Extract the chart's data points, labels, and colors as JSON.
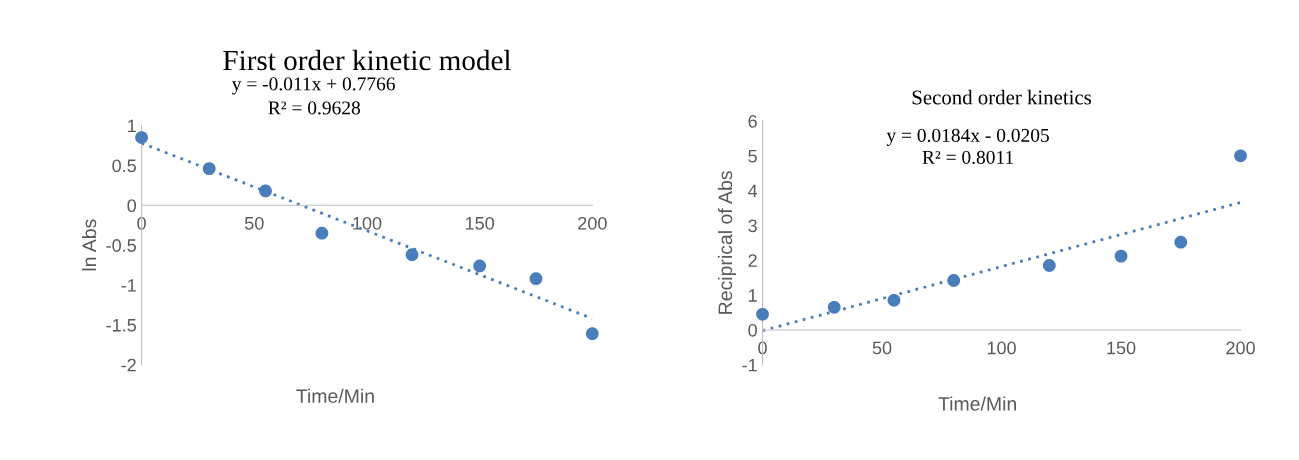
{
  "chart_data": [
    {
      "type": "scatter",
      "title": "First order kinetic model",
      "xlabel": "Time/Min",
      "ylabel": "ln Abs",
      "annotations": [
        "y = -0.011x + 0.7766",
        "R² = 0.9628"
      ],
      "xlim": [
        0,
        200
      ],
      "ylim": [
        -2,
        1
      ],
      "xticks": [
        0,
        50,
        100,
        150,
        200
      ],
      "yticks": [
        -2,
        -1.5,
        -1,
        -0.5,
        0,
        0.5,
        1
      ],
      "grid": false,
      "legend": false,
      "series": [
        {
          "color": "#4a7ebb",
          "marker": "circle",
          "x": [
            0,
            30,
            55,
            80,
            120,
            150,
            175,
            200
          ],
          "values": [
            0.85,
            0.46,
            0.18,
            -0.35,
            -0.62,
            -0.76,
            -0.92,
            -1.61
          ]
        },
        {
          "type": "line",
          "color": "#4a7ebb",
          "marker": "none",
          "line_style": "dotted",
          "x": [
            0,
            200
          ],
          "values": [
            0.78,
            -1.42
          ]
        }
      ]
    },
    {
      "type": "scatter",
      "title": "Second order kinetics",
      "xlabel": "Time/Min",
      "ylabel": "Reciprical of Abs",
      "annotations": [
        "y = 0.0184x - 0.0205",
        "R² = 0.8011"
      ],
      "xlim": [
        0,
        200
      ],
      "ylim": [
        -1,
        6
      ],
      "xticks": [
        0,
        50,
        100,
        150,
        200
      ],
      "yticks": [
        -1,
        0,
        1,
        2,
        3,
        4,
        5,
        6
      ],
      "grid": false,
      "legend": false,
      "series": [
        {
          "color": "#4a7ebb",
          "marker": "circle",
          "x": [
            0,
            30,
            55,
            80,
            120,
            150,
            175,
            200
          ],
          "values": [
            0.45,
            0.65,
            0.85,
            1.42,
            1.85,
            2.12,
            2.52,
            5.0
          ]
        },
        {
          "type": "line",
          "color": "#4a7ebb",
          "marker": "none",
          "line_style": "dotted",
          "x": [
            0,
            200
          ],
          "values": [
            -0.02,
            3.66
          ]
        }
      ]
    }
  ]
}
